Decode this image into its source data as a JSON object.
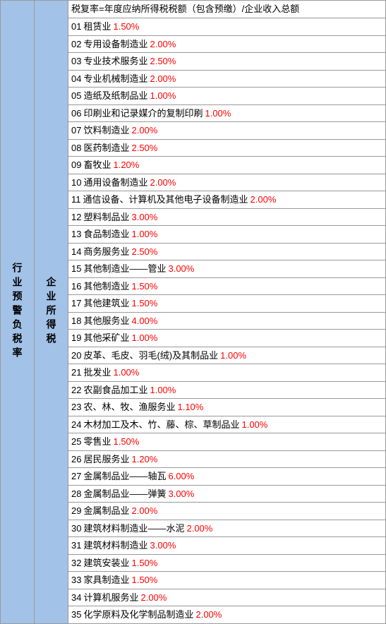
{
  "leftHeader": "行业预警负税率",
  "midHeader": "企业所得税",
  "formula": "税复率=年度应纳所得税税额（包含预缴）/企业收入总额",
  "rows": [
    {
      "num": "01",
      "label": "租赁业",
      "rate": "1.50%"
    },
    {
      "num": "02",
      "label": "专用设备制造业",
      "rate": "2.00%"
    },
    {
      "num": "03",
      "label": "专业技术服务业",
      "rate": "2.50%"
    },
    {
      "num": "04",
      "label": "专业机械制造业",
      "rate": "2.00%"
    },
    {
      "num": "05",
      "label": "造纸及纸制品业",
      "rate": "1.00%"
    },
    {
      "num": "06",
      "label": "印刷业和记录媒介的复制印刷",
      "rate": "1.00%"
    },
    {
      "num": "07",
      "label": "饮料制造业",
      "rate": "2.00%"
    },
    {
      "num": "08",
      "label": "医药制造业",
      "rate": "2.50%"
    },
    {
      "num": "09",
      "label": "畜牧业",
      "rate": "1.20%"
    },
    {
      "num": "10",
      "label": "通用设备制造业",
      "rate": "2.00%"
    },
    {
      "num": "11",
      "label": "通信设备、计算机及其他电子设备制造业",
      "rate": "2.00%"
    },
    {
      "num": "12",
      "label": "塑料制品业",
      "rate": "3.00%"
    },
    {
      "num": "13",
      "label": "食品制造业",
      "rate": "1.00%"
    },
    {
      "num": "14",
      "label": "商务服务业",
      "rate": "2.50%"
    },
    {
      "num": "15",
      "label": "其他制造业——管业",
      "rate": "3.00%"
    },
    {
      "num": "16",
      "label": "其他制造业",
      "rate": "1.50%"
    },
    {
      "num": "17",
      "label": "其他建筑业",
      "rate": "1.50%"
    },
    {
      "num": "18",
      "label": "其他服务业",
      "rate": "4.00%"
    },
    {
      "num": "19",
      "label": "其他采矿业",
      "rate": "1.00%"
    },
    {
      "num": "20",
      "label": "皮革、毛皮、羽毛(绒)及其制品业",
      "rate": "1.00%"
    },
    {
      "num": "21",
      "label": "批发业",
      "rate": "1.00%"
    },
    {
      "num": "22",
      "label": "农副食品加工业",
      "rate": "1.00%"
    },
    {
      "num": "23",
      "label": "农、林、牧、渔服务业",
      "rate": "1.10%"
    },
    {
      "num": "24",
      "label": "木材加工及木、竹、藤、棕、草制品业",
      "rate": "1.00%"
    },
    {
      "num": "25",
      "label": "零售业",
      "rate": "1.50%"
    },
    {
      "num": "26",
      "label": "居民服务业",
      "rate": "1.20%"
    },
    {
      "num": "27",
      "label": "金属制品业——轴瓦",
      "rate": "6.00%"
    },
    {
      "num": "28",
      "label": "金属制品业——弹簧",
      "rate": "3.00%"
    },
    {
      "num": "29",
      "label": "金属制品业",
      "rate": "2.00%"
    },
    {
      "num": "30",
      "label": "建筑材料制造业——水泥",
      "rate": "2.00%"
    },
    {
      "num": "31",
      "label": "建筑材料制造业",
      "rate": "3.00%"
    },
    {
      "num": "32",
      "label": "建筑安装业",
      "rate": "1.50%"
    },
    {
      "num": "33",
      "label": "家具制造业",
      "rate": "1.50%"
    },
    {
      "num": "34",
      "label": "计算机服务业",
      "rate": "2.00%"
    },
    {
      "num": "35",
      "label": "化学原料及化学制品制造业",
      "rate": "2.00%"
    }
  ],
  "colors": {
    "headerBg": "#a3c2e7",
    "rateColor": "#ff0000",
    "textColor": "#000000",
    "borderColor": "#999999"
  }
}
